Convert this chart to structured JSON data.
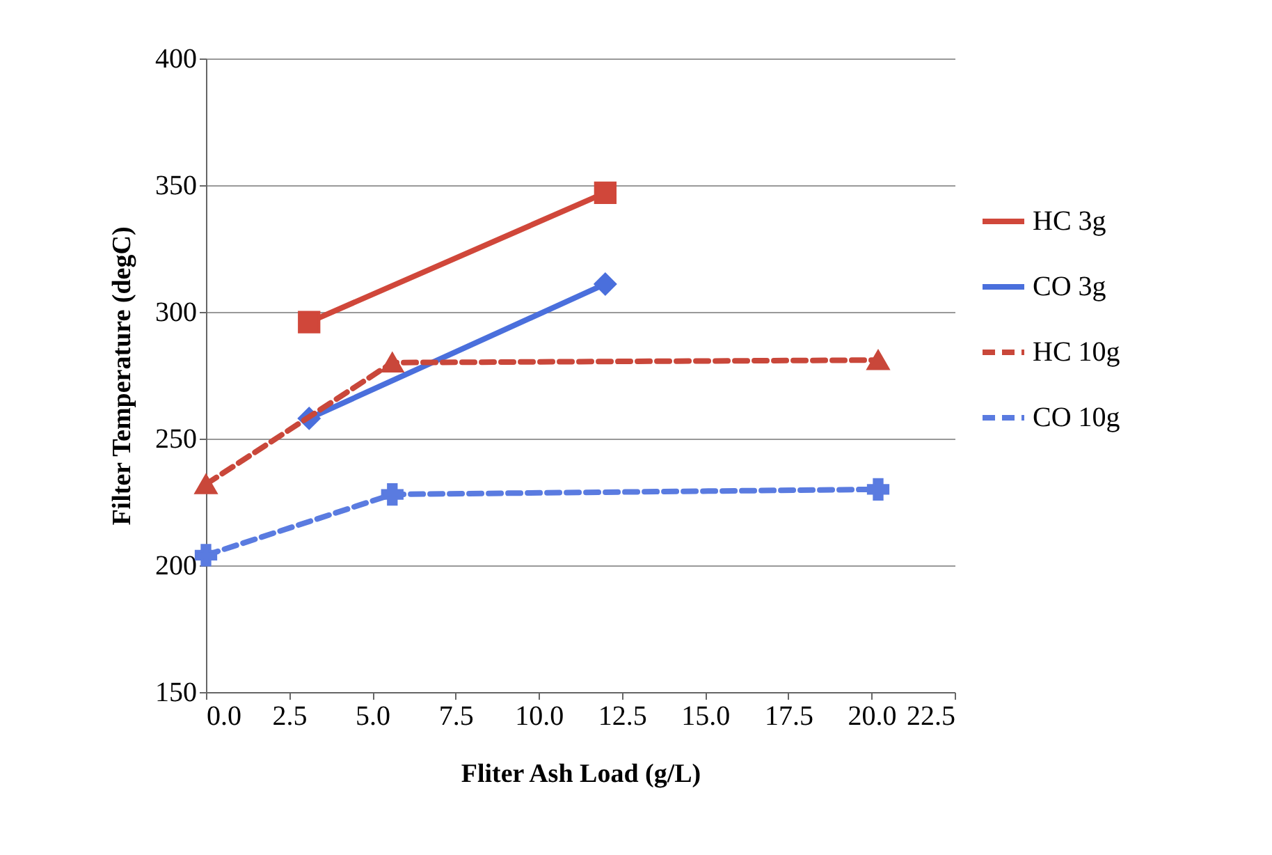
{
  "chart_data": {
    "type": "line",
    "xlabel": "Fliter Ash Load (g/L)",
    "ylabel": "Filter Temperature (degC)",
    "xlim": [
      0,
      22.5
    ],
    "xticks": [
      {
        "value": 0,
        "label": "0.0"
      },
      {
        "value": 2.5,
        "label": "2.5"
      },
      {
        "value": 5,
        "label": "5.0"
      },
      {
        "value": 7.5,
        "label": "7.5"
      },
      {
        "value": 10,
        "label": "10.0"
      },
      {
        "value": 12.5,
        "label": "12.5"
      },
      {
        "value": 15,
        "label": "15.0"
      },
      {
        "value": 17.5,
        "label": "17.5"
      },
      {
        "value": 20,
        "label": "20.0"
      },
      {
        "value": 22.5,
        "label": "22.5"
      }
    ],
    "ylim": [
      150,
      400
    ],
    "yticks": [
      150,
      200,
      250,
      300,
      350,
      400
    ],
    "grid": "y",
    "legend": "right",
    "series": [
      {
        "name": "HC 3g",
        "color": "#d0473a",
        "marker": "square",
        "line_style": "solid",
        "x": [
          3.1,
          12
        ],
        "values": [
          296,
          347
        ]
      },
      {
        "name": "CO 3g",
        "color": "#4a6fdc",
        "marker": "diamond",
        "line_style": "solid",
        "x": [
          3.1,
          12
        ],
        "values": [
          258,
          311
        ]
      },
      {
        "name": "HC 10g",
        "color": "#c9473a",
        "marker": "triangle",
        "line_style": "dashed",
        "x": [
          0,
          5.6,
          20.2
        ],
        "values": [
          232,
          280,
          281
        ]
      },
      {
        "name": "CO 10g",
        "color": "#5a7be0",
        "marker": "cross",
        "line_style": "dashed",
        "x": [
          0,
          5.6,
          20.2
        ],
        "values": [
          204,
          228,
          230
        ]
      }
    ]
  }
}
